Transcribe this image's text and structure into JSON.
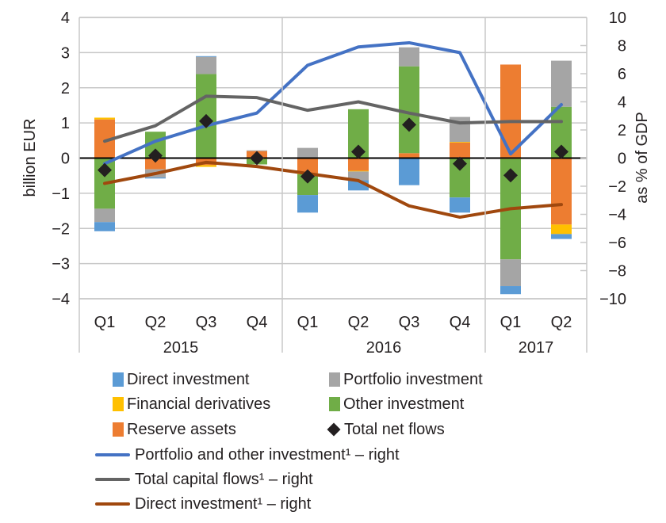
{
  "chart_data": {
    "type": "bar",
    "subtype": "stacked bar with line overlays on secondary axis",
    "title": "",
    "ylabel": "billion  EUR",
    "y2label": "as % of GDP",
    "ylim": [
      -4,
      4
    ],
    "y2lim": [
      -10,
      10
    ],
    "yticks": [
      "4",
      "3",
      "2",
      "1",
      "0",
      "−1",
      "−2",
      "−3",
      "−4"
    ],
    "y2ticks": [
      "10",
      "8",
      "6",
      "4",
      "2",
      "0",
      "−2",
      "−4",
      "−6",
      "−8",
      "−10"
    ],
    "yticks_values": [
      4,
      3,
      2,
      1,
      0,
      -1,
      -2,
      -3,
      -4
    ],
    "y2ticks_values": [
      10,
      8,
      6,
      4,
      2,
      0,
      -2,
      -4,
      -6,
      -8,
      -10
    ],
    "grid": true,
    "categories": [
      "Q1",
      "Q2",
      "Q3",
      "Q4",
      "Q1",
      "Q2",
      "Q3",
      "Q4",
      "Q1",
      "Q2"
    ],
    "groups": [
      {
        "label": "2015",
        "count": 4
      },
      {
        "label": "2016",
        "count": 4
      },
      {
        "label": "2017",
        "count": 2
      }
    ],
    "bar_series": [
      {
        "name": "Direct investment",
        "color": "#5b9bd5",
        "values": [
          -0.26,
          -0.03,
          0.02,
          0.0,
          -0.5,
          -0.29,
          -0.77,
          -0.43,
          -0.23,
          -0.14
        ]
      },
      {
        "name": "Portfolio investment",
        "color": "#a5a5a5",
        "values": [
          -0.38,
          -0.23,
          0.49,
          0.02,
          0.29,
          -0.25,
          0.54,
          0.71,
          -0.76,
          1.31
        ]
      },
      {
        "name": "Financial derivatives",
        "color": "#ffc000",
        "values": [
          0.05,
          0.0,
          -0.05,
          -0.03,
          -0.03,
          -0.02,
          0.0,
          0.02,
          -0.03,
          -0.27
        ]
      },
      {
        "name": "Other investment",
        "color": "#70ad47",
        "values": [
          -1.44,
          0.75,
          2.39,
          -0.15,
          -0.59,
          1.39,
          2.47,
          -1.12,
          -2.85,
          1.46
        ]
      },
      {
        "name": "Reserve assets",
        "color": "#ed7d31",
        "values": [
          1.1,
          -0.32,
          -0.2,
          0.2,
          -0.43,
          -0.36,
          0.14,
          0.44,
          2.66,
          -1.89
        ]
      }
    ],
    "stack_order_positive": [
      "Reserve assets",
      "Financial derivatives",
      "Other investment",
      "Portfolio investment",
      "Direct investment"
    ],
    "stack_order_negative": [
      "Reserve assets",
      "Financial derivatives",
      "Other investment",
      "Portfolio investment",
      "Direct investment"
    ],
    "markers": {
      "name": "Total net flows",
      "color": "#231f20",
      "values": [
        -0.34,
        0.07,
        1.05,
        0.0,
        -0.52,
        0.18,
        0.95,
        -0.16,
        -0.49,
        0.18
      ]
    },
    "line_series": [
      {
        "name": "Portfolio and other investment¹ – right",
        "color": "#4472c4",
        "axis": "right",
        "values": [
          -0.4,
          1.2,
          2.3,
          3.2,
          6.6,
          7.9,
          8.2,
          7.5,
          0.3,
          3.8
        ]
      },
      {
        "name": "Total capital flows¹ – right",
        "color": "#646464",
        "axis": "right",
        "values": [
          1.2,
          2.3,
          4.4,
          4.3,
          3.4,
          4.0,
          3.2,
          2.5,
          2.6,
          2.6
        ]
      },
      {
        "name": "Direct investment¹ – right",
        "color": "#a0480e",
        "axis": "right",
        "values": [
          -1.8,
          -1.1,
          -0.3,
          -0.6,
          -1.1,
          -1.6,
          -3.4,
          -4.2,
          -3.6,
          -3.3
        ]
      }
    ],
    "legend_position": "bottom"
  },
  "legend": {
    "bars": [
      {
        "label": "Direct investment",
        "color": "#5b9bd5"
      },
      {
        "label": "Portfolio investment",
        "color": "#a5a5a5"
      },
      {
        "label": "Financial derivatives",
        "color": "#ffc000"
      },
      {
        "label": "Other investment",
        "color": "#70ad47"
      },
      {
        "label": "Reserve assets",
        "color": "#ed7d31"
      },
      {
        "label": "Total net flows",
        "color": "#231f20"
      }
    ],
    "lines": [
      {
        "label": "Portfolio and other investment¹ – right",
        "color": "#4472c4"
      },
      {
        "label": "Total capital flows¹ – right",
        "color": "#646464"
      },
      {
        "label": "Direct investment¹ – right",
        "color": "#a0480e"
      }
    ]
  }
}
